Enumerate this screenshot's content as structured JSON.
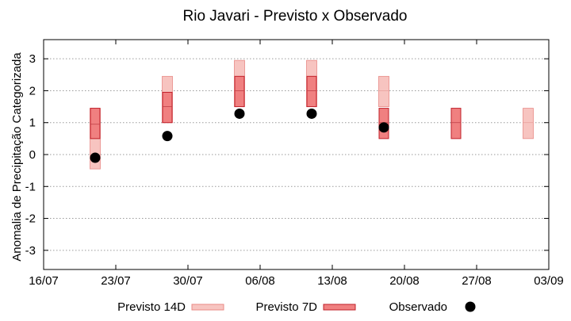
{
  "chart_data": {
    "type": "scatter",
    "title": "Rio Javari - Previsto x Observado",
    "xlabel": "",
    "ylabel": "Anomalia de Precipitação Categorizada",
    "x_ticks": [
      "16/07",
      "23/07",
      "30/07",
      "06/08",
      "13/08",
      "20/08",
      "27/08",
      "03/09"
    ],
    "ylim": [
      -3.6,
      3.6
    ],
    "y_ticks": [
      3,
      2,
      1,
      0,
      -1,
      -2,
      -3
    ],
    "y_tick_labels": [
      "3",
      "2",
      "1",
      "0",
      "-1",
      "-2",
      "-3"
    ],
    "grid": "horizontal dotted",
    "series": [
      {
        "name": "Previsto 14D",
        "kind": "range",
        "color": "#f7c4c0",
        "points": [
          {
            "x": "21/07",
            "low": -0.45,
            "mid": 0.5,
            "high": 1.45
          },
          {
            "x": "28/07",
            "low": 1.0,
            "mid": 1.5,
            "high": 2.45
          },
          {
            "x": "04/08",
            "low": 1.5,
            "mid": 2.0,
            "high": 2.95
          },
          {
            "x": "11/08",
            "low": 1.5,
            "mid": 2.0,
            "high": 2.95
          },
          {
            "x": "18/08",
            "low": 1.5,
            "mid": 2.0,
            "high": 2.45
          },
          {
            "x": "01/09",
            "low": 0.5,
            "mid": 1.0,
            "high": 1.45
          }
        ]
      },
      {
        "name": "Previsto 7D",
        "kind": "range",
        "color": "#f08080",
        "points": [
          {
            "x": "21/07",
            "low": 0.5,
            "mid": 0.95,
            "high": 1.45
          },
          {
            "x": "28/07",
            "low": 1.0,
            "mid": 1.5,
            "high": 1.95
          },
          {
            "x": "04/08",
            "low": 1.5,
            "mid": 2.0,
            "high": 2.45
          },
          {
            "x": "11/08",
            "low": 1.5,
            "mid": 2.0,
            "high": 2.45
          },
          {
            "x": "18/08",
            "low": 0.5,
            "mid": 1.0,
            "high": 1.45
          },
          {
            "x": "25/08",
            "low": 0.5,
            "mid": 1.0,
            "high": 1.45
          }
        ]
      },
      {
        "name": "Observado",
        "kind": "point",
        "color": "#000000",
        "points": [
          {
            "x": "21/07",
            "y": -0.1
          },
          {
            "x": "28/07",
            "y": 0.58
          },
          {
            "x": "04/08",
            "y": 1.28
          },
          {
            "x": "11/08",
            "y": 1.28
          },
          {
            "x": "18/08",
            "y": 0.85
          }
        ]
      }
    ],
    "legend": {
      "placement": "bottom"
    }
  }
}
